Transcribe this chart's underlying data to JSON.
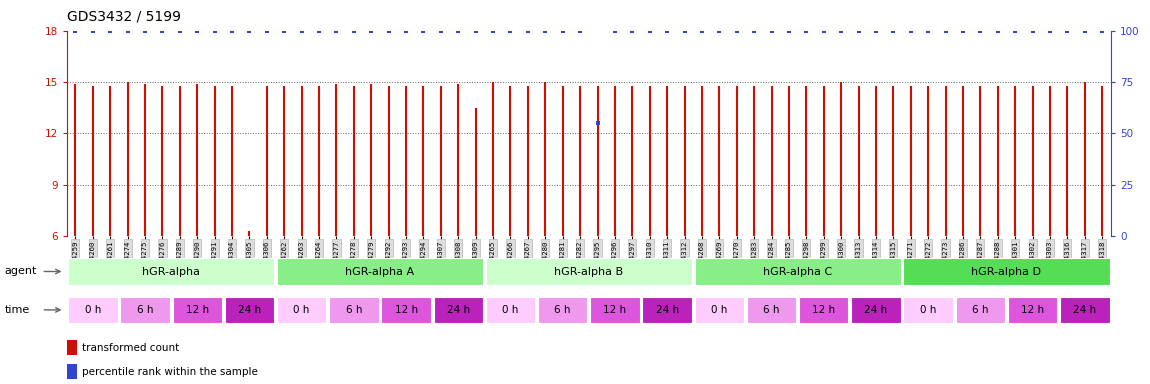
{
  "title": "GDS3432 / 5199",
  "samples": [
    "GSM154259",
    "GSM154260",
    "GSM154261",
    "GSM154274",
    "GSM154275",
    "GSM154276",
    "GSM154289",
    "GSM154290",
    "GSM154291",
    "GSM154304",
    "GSM154305",
    "GSM154306",
    "GSM154262",
    "GSM154263",
    "GSM154264",
    "GSM154277",
    "GSM154278",
    "GSM154279",
    "GSM154292",
    "GSM154293",
    "GSM154294",
    "GSM154307",
    "GSM154308",
    "GSM154309",
    "GSM154265",
    "GSM154266",
    "GSM154267",
    "GSM154280",
    "GSM154281",
    "GSM154282",
    "GSM154295",
    "GSM154296",
    "GSM154297",
    "GSM154310",
    "GSM154311",
    "GSM154312",
    "GSM154268",
    "GSM154269",
    "GSM154270",
    "GSM154283",
    "GSM154284",
    "GSM154285",
    "GSM154298",
    "GSM154299",
    "GSM154300",
    "GSM154313",
    "GSM154314",
    "GSM154315",
    "GSM154271",
    "GSM154272",
    "GSM154273",
    "GSM154286",
    "GSM154287",
    "GSM154288",
    "GSM154301",
    "GSM154302",
    "GSM154303",
    "GSM154316",
    "GSM154317",
    "GSM154318"
  ],
  "bar_values": [
    14.9,
    14.8,
    14.8,
    15.0,
    14.9,
    14.8,
    14.8,
    14.9,
    14.8,
    14.8,
    6.3,
    14.8,
    14.8,
    14.8,
    14.8,
    14.9,
    14.8,
    14.9,
    14.8,
    14.8,
    14.8,
    14.8,
    14.9,
    13.5,
    15.0,
    14.8,
    14.8,
    15.0,
    14.8,
    14.8,
    14.8,
    14.8,
    14.8,
    14.8,
    14.8,
    14.8,
    14.8,
    14.8,
    14.8,
    14.8,
    14.8,
    14.8,
    14.8,
    14.8,
    15.0,
    14.8,
    14.8,
    14.8,
    14.8,
    14.8,
    14.8,
    14.8,
    14.8,
    14.8,
    14.8,
    14.8,
    14.8,
    14.8,
    15.0,
    14.8
  ],
  "blue_dot_values_right": [
    100,
    100,
    100,
    100,
    100,
    100,
    100,
    100,
    100,
    100,
    100,
    100,
    100,
    100,
    100,
    100,
    100,
    100,
    100,
    100,
    100,
    100,
    100,
    100,
    100,
    100,
    100,
    100,
    100,
    100,
    55,
    100,
    100,
    100,
    100,
    100,
    100,
    100,
    100,
    100,
    100,
    100,
    100,
    100,
    100,
    100,
    100,
    100,
    100,
    100,
    100,
    100,
    100,
    100,
    100,
    100,
    100,
    100,
    100,
    100
  ],
  "agent_groups": [
    {
      "label": "hGR-alpha",
      "start": 0,
      "end": 12,
      "color": "#ccffcc"
    },
    {
      "label": "hGR-alpha A",
      "start": 12,
      "end": 24,
      "color": "#88ee88"
    },
    {
      "label": "hGR-alpha B",
      "start": 24,
      "end": 36,
      "color": "#ccffcc"
    },
    {
      "label": "hGR-alpha C",
      "start": 36,
      "end": 48,
      "color": "#88ee88"
    },
    {
      "label": "hGR-alpha D",
      "start": 48,
      "end": 60,
      "color": "#55dd55"
    }
  ],
  "time_colors": [
    "#ffccff",
    "#ee99ee",
    "#dd55dd",
    "#bb22bb"
  ],
  "time_labels": [
    "0 h",
    "6 h",
    "12 h",
    "24 h"
  ],
  "ylim_left": [
    6,
    18
  ],
  "ylim_right": [
    0,
    100
  ],
  "yticks_left": [
    6,
    9,
    12,
    15,
    18
  ],
  "yticks_right": [
    0,
    25,
    50,
    75,
    100
  ],
  "bar_color": "#cc1100",
  "blue_color": "#3344cc",
  "background_color": "#ffffff",
  "left_axis_color": "#cc1100",
  "right_axis_color": "#3344cc",
  "grid_dotted_at": [
    9,
    12,
    15
  ],
  "ticklabel_bg": "#dddddd"
}
